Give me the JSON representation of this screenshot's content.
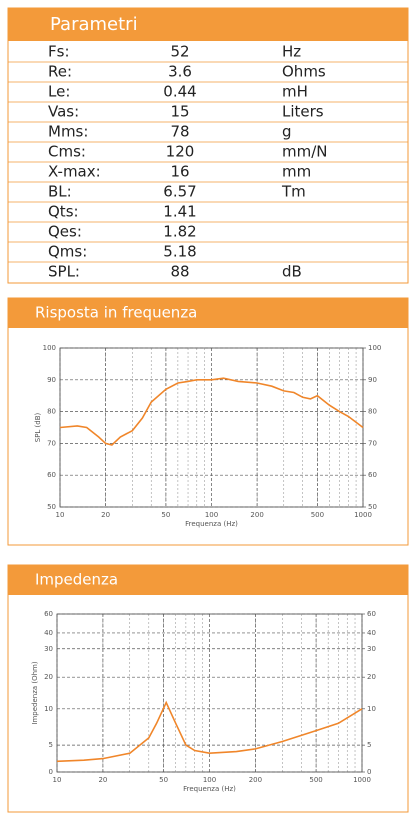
{
  "parameters": {
    "title": "Parametri",
    "rows": [
      {
        "name": "Fs:",
        "value": 52,
        "unit": "Hz"
      },
      {
        "name": "Re:",
        "value": 3.6,
        "unit": "Ohms"
      },
      {
        "name": "Le:",
        "value": 0.44,
        "unit": "mH"
      },
      {
        "name": "Vas:",
        "value": 15,
        "unit": "Liters"
      },
      {
        "name": "Mms:",
        "value": 78,
        "unit": "g"
      },
      {
        "name": "Cms:",
        "value": 120,
        "unit": "mm/N"
      },
      {
        "name": "X-max:",
        "value": 16,
        "unit": "mm"
      },
      {
        "name": "BL:",
        "value": 6.57,
        "unit": "Tm"
      },
      {
        "name": "Qts:",
        "value": 1.41
      },
      {
        "name": "Qes:",
        "value": 1.82
      },
      {
        "name": "Qms:",
        "value": 5.18
      },
      {
        "name": "SPL:",
        "value": 88,
        "unit": "dB"
      }
    ]
  },
  "chart_data": [
    {
      "type": "line",
      "title": "Risposta in frequenza",
      "xlabel": "Frequenza (Hz)",
      "ylabel": "SPL (dB)",
      "log_x": true,
      "grid": true,
      "color": "#f0862a",
      "x": [
        10,
        13,
        15,
        18,
        20,
        22,
        25,
        30,
        35,
        40,
        50,
        60,
        70,
        80,
        100,
        120,
        150,
        200,
        250,
        300,
        350,
        400,
        450,
        500,
        600,
        700,
        800,
        1000
      ],
      "values": [
        75,
        75.5,
        75,
        72,
        70,
        69.5,
        72,
        74,
        78,
        83,
        87,
        89,
        89.5,
        90,
        90,
        90.5,
        89.5,
        89,
        88,
        86.5,
        86,
        84.5,
        84,
        85,
        82,
        80,
        78.5,
        75
      ],
      "xlim": [
        10,
        1000
      ],
      "xticks": [
        10,
        20,
        50,
        100,
        200,
        500,
        1000
      ],
      "ylim": [
        50,
        100
      ],
      "yticks": [
        50,
        60,
        70,
        80,
        90,
        100
      ],
      "y2lim": [
        50,
        100
      ],
      "y2ticks": [
        50,
        60,
        70,
        80,
        90,
        100
      ]
    },
    {
      "type": "line",
      "title": "Impedenza",
      "xlabel": "Frequenza (Hz)",
      "ylabel": "Impedenza (Ohm)",
      "log_x": true,
      "grid": true,
      "color": "#f0862a",
      "x": [
        10,
        15,
        20,
        30,
        40,
        45,
        52,
        60,
        70,
        80,
        100,
        150,
        200,
        300,
        500,
        700,
        1000
      ],
      "values": [
        2,
        2.2,
        2.5,
        3.5,
        6,
        8,
        12,
        8,
        5,
        4,
        3.5,
        3.8,
        4.3,
        5.5,
        7,
        8,
        10
      ],
      "xlim": [
        10,
        1000
      ],
      "xticks": [
        10,
        20,
        50,
        100,
        200,
        500,
        1000
      ],
      "ylim": [
        0,
        60
      ],
      "yticks": [
        0,
        5,
        10,
        20,
        30,
        40,
        60
      ],
      "y2lim": [
        0,
        60
      ],
      "y2ticks": [
        0,
        5,
        10,
        20,
        30,
        40,
        60
      ]
    }
  ]
}
